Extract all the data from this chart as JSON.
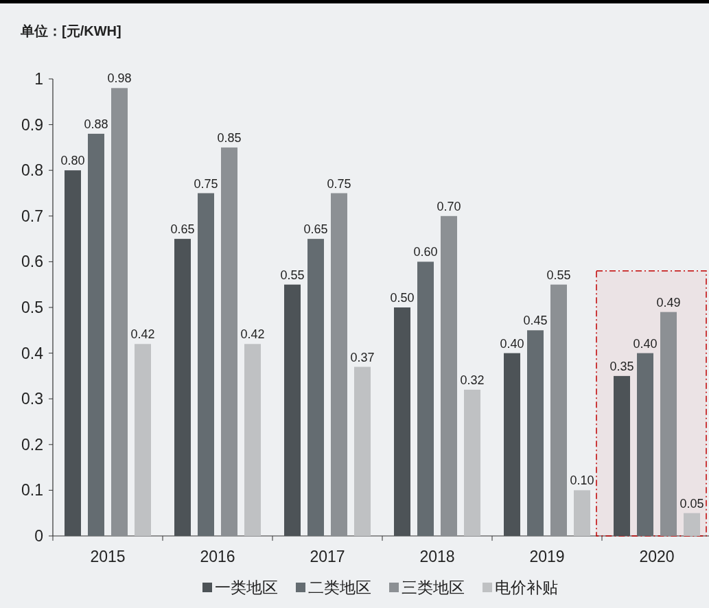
{
  "chart_data": {
    "type": "bar",
    "ylabel": "单位：[元/KWH]",
    "categories": [
      "2015",
      "2016",
      "2017",
      "2018",
      "2019",
      "2020"
    ],
    "series": [
      {
        "name": "一类地区",
        "color": "#4d5357",
        "values": [
          0.8,
          0.65,
          0.55,
          0.5,
          0.4,
          0.35
        ],
        "value_labels": [
          "0.80",
          "0.65",
          "0.55",
          "0.50",
          "0.40",
          "0.35"
        ]
      },
      {
        "name": "二类地区",
        "color": "#646c71",
        "values": [
          0.88,
          0.75,
          0.65,
          0.6,
          0.45,
          0.4
        ],
        "value_labels": [
          "0.88",
          "0.75",
          "0.65",
          "0.60",
          "0.45",
          "0.40"
        ]
      },
      {
        "name": "三类地区",
        "color": "#8c9094",
        "values": [
          0.98,
          0.85,
          0.75,
          0.7,
          0.55,
          0.49
        ],
        "value_labels": [
          "0.98",
          "0.85",
          "0.75",
          "0.70",
          "0.55",
          "0.49"
        ]
      },
      {
        "name": "电价补贴",
        "color": "#bfc1c3",
        "values": [
          0.42,
          0.42,
          0.37,
          0.32,
          0.1,
          0.05
        ],
        "value_labels": [
          "0.42",
          "0.42",
          "0.37",
          "0.32",
          "0.10",
          "0.05"
        ]
      }
    ],
    "ylim": [
      0,
      1
    ],
    "yticks": [
      0,
      0.1,
      0.2,
      0.3,
      0.4,
      0.5,
      0.6,
      0.7,
      0.8,
      0.9,
      1
    ],
    "legend": "bottom",
    "bands": [
      {
        "axis": "x",
        "from": "2020",
        "to": "2020",
        "color": "#c00000"
      }
    ]
  }
}
